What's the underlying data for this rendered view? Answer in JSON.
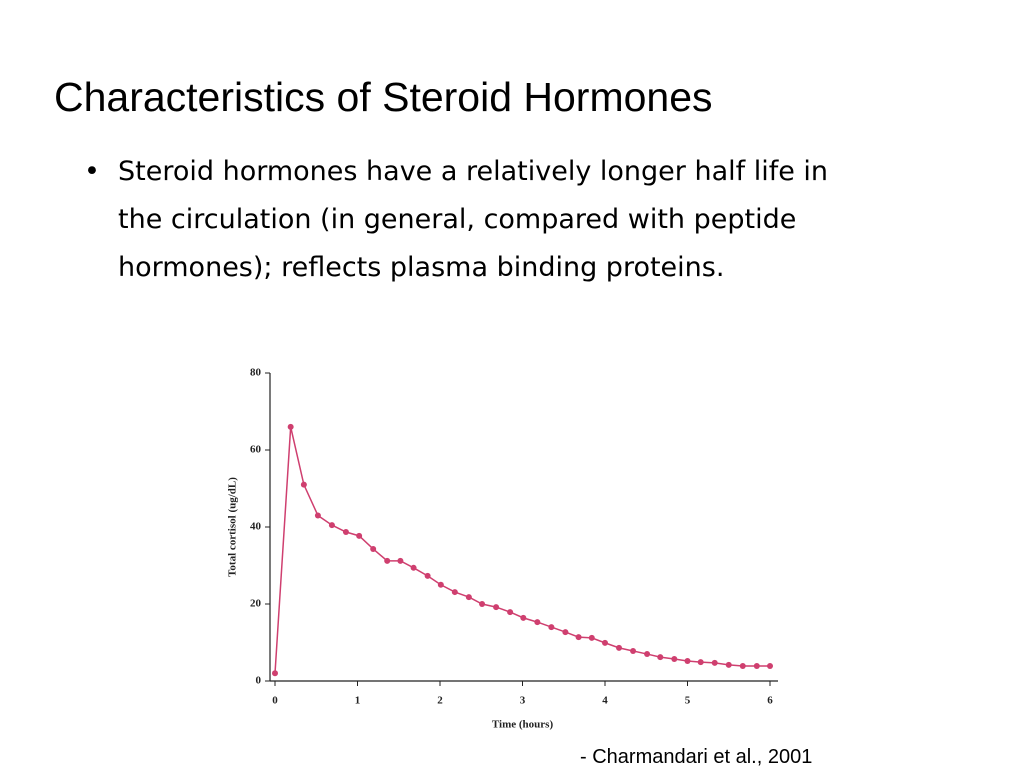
{
  "title": "Characteristics of Steroid Hormones",
  "bullet": {
    "lines": [
      "Steroid hormones have a relatively longer half life in",
      "the circulation (in general, compared with peptide",
      "hormones); reflects plasma binding proteins."
    ]
  },
  "chart_data": {
    "type": "line",
    "x_label": "Time (hours)",
    "y_label": "Total cortisol (ug/dL)",
    "x": [
      0,
      0.19,
      0.35,
      0.52,
      0.69,
      0.86,
      1.02,
      1.19,
      1.36,
      1.52,
      1.68,
      1.85,
      2.01,
      2.18,
      2.35,
      2.51,
      2.68,
      2.85,
      3.01,
      3.18,
      3.35,
      3.52,
      3.68,
      3.84,
      4.0,
      4.17,
      4.34,
      4.51,
      4.67,
      4.84,
      5.0,
      5.16,
      5.33,
      5.5,
      5.67,
      5.84,
      6.0
    ],
    "series": [
      {
        "color": "#cf3f6f",
        "values": [
          2,
          66,
          51,
          43,
          40.5,
          38.7,
          37.7,
          34.3,
          31.2,
          31.2,
          29.4,
          27.3,
          25,
          23.1,
          21.8,
          20,
          19.2,
          17.9,
          16.4,
          15.3,
          14,
          12.7,
          11.4,
          11.2,
          9.9,
          8.6,
          7.8,
          7,
          6.2,
          5.7,
          5.2,
          4.9,
          4.7,
          4.2,
          3.9,
          3.9,
          3.9
        ]
      }
    ],
    "xlim": [
      0,
      6
    ],
    "xticks": [
      0,
      1,
      2,
      3,
      4,
      5,
      6
    ],
    "ylim": [
      0,
      80
    ],
    "yticks": [
      0,
      20,
      40,
      60,
      80
    ]
  },
  "citation": "- Charmandari et al., 2001"
}
